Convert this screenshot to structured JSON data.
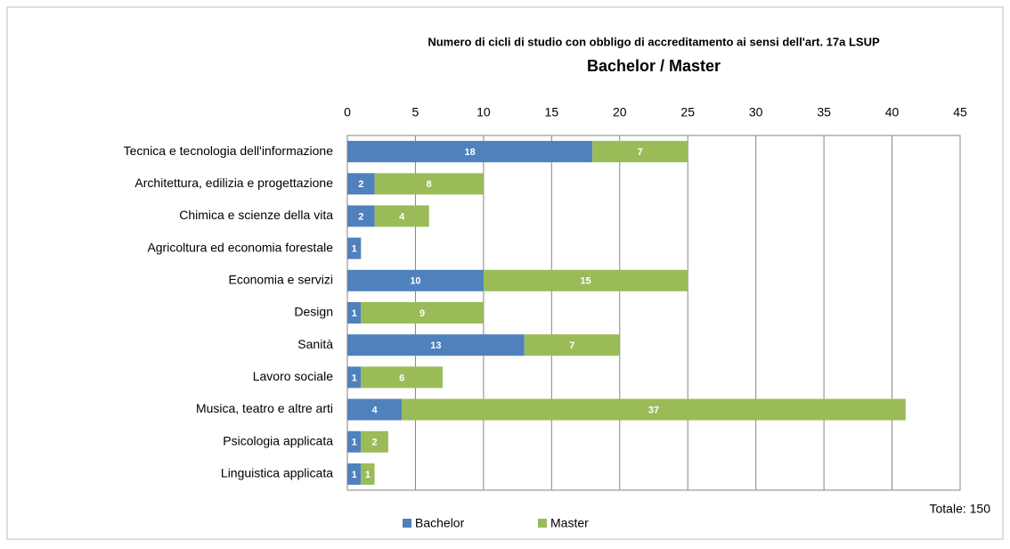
{
  "chart_data": {
    "type": "stacked_bar_horizontal",
    "title": "Numero di cicli di studio con obbligo di accreditamento ai sensi dell'art. 17a LSUP",
    "subtitle": "Bachelor / Master",
    "categories": [
      "Tecnica e tecnologia dell'informazione",
      "Architettura, edilizia e progettazione",
      "Chimica e scienze della vita",
      "Agricoltura ed economia forestale",
      "Economia e servizi",
      "Design",
      "Sanità",
      "Lavoro sociale",
      "Musica, teatro e altre arti",
      "Psicologia applicata",
      "Linguistica applicata"
    ],
    "series": [
      {
        "name": "Bachelor",
        "color": "#4f81bd",
        "values": [
          18,
          2,
          2,
          1,
          10,
          1,
          13,
          1,
          4,
          1,
          1
        ]
      },
      {
        "name": "Master",
        "color": "#9bbb59",
        "values": [
          7,
          8,
          4,
          null,
          15,
          9,
          7,
          6,
          37,
          2,
          1
        ]
      }
    ],
    "xlim": [
      0,
      45
    ],
    "xticks": [
      0,
      5,
      10,
      15,
      20,
      25,
      30,
      35,
      40,
      45
    ],
    "grid": true,
    "legend": "bottom",
    "annotation": "Totale: 150"
  }
}
